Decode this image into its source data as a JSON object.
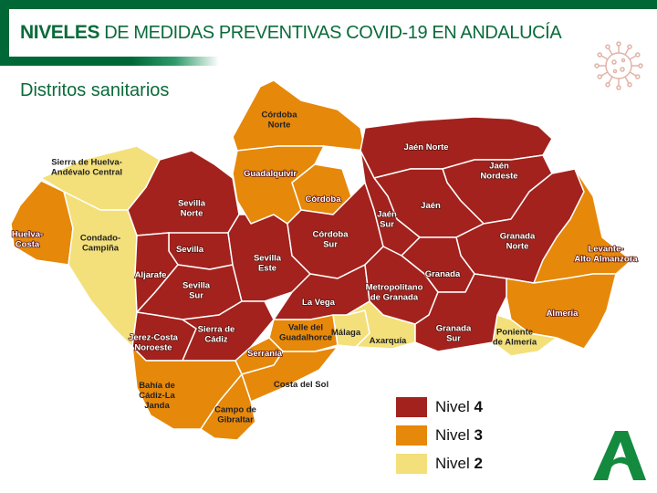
{
  "header": {
    "title_bold": "NIVELES",
    "title_rest": "DE MEDIDAS PREVENTIVAS COVID-19 EN ANDALUCÍA",
    "subtitle": "Distritos sanitarios",
    "icon": "virus-icon"
  },
  "colors": {
    "nivel4": "#a3221d",
    "nivel3": "#e6880a",
    "nivel2": "#f3e07a",
    "brand": "#006837",
    "border": "#ffffff"
  },
  "legend": [
    {
      "label": "Nivel",
      "level": "4",
      "color": "#a3221d"
    },
    {
      "label": "Nivel",
      "level": "3",
      "color": "#e6880a"
    },
    {
      "label": "Nivel",
      "level": "2",
      "color": "#f3e07a"
    }
  ],
  "districts": [
    {
      "id": "sierra-huelva",
      "lines": [
        "Sierra de Huelva-",
        "Andévalo Central"
      ],
      "level": 2
    },
    {
      "id": "huelva-costa",
      "lines": [
        "Huelva-",
        "Costa"
      ],
      "level": 3
    },
    {
      "id": "condado",
      "lines": [
        "Condado-",
        "Campiña"
      ],
      "level": 2
    },
    {
      "id": "sevilla-norte",
      "lines": [
        "Sevilla",
        "Norte"
      ],
      "level": 4
    },
    {
      "id": "sevilla",
      "lines": [
        "Sevilla"
      ],
      "level": 4
    },
    {
      "id": "aljarafe",
      "lines": [
        "Aljarafe"
      ],
      "level": 4
    },
    {
      "id": "sevilla-sur",
      "lines": [
        "Sevilla",
        "Sur"
      ],
      "level": 4
    },
    {
      "id": "sevilla-este",
      "lines": [
        "Sevilla",
        "Este"
      ],
      "level": 4
    },
    {
      "id": "cordoba-norte",
      "lines": [
        "Córdoba",
        "Norte"
      ],
      "level": 3
    },
    {
      "id": "guadalquivir",
      "lines": [
        "Guadalquivir"
      ],
      "level": 3
    },
    {
      "id": "cordoba",
      "lines": [
        "Córdoba"
      ],
      "level": 3
    },
    {
      "id": "cordoba-sur",
      "lines": [
        "Córdoba",
        "Sur"
      ],
      "level": 4
    },
    {
      "id": "la-vega",
      "lines": [
        "La Vega"
      ],
      "level": 4
    },
    {
      "id": "jerez",
      "lines": [
        "Jerez-Costa",
        "Noroeste"
      ],
      "level": 4
    },
    {
      "id": "sierra-cadiz",
      "lines": [
        "Sierra de",
        "Cádiz"
      ],
      "level": 4
    },
    {
      "id": "guadalhorce",
      "lines": [
        "Valle del",
        "Guadalhorce"
      ],
      "level": 3
    },
    {
      "id": "serrania",
      "lines": [
        "Serranía"
      ],
      "level": 3
    },
    {
      "id": "costa-sol",
      "lines": [
        "Costa del Sol"
      ],
      "level": 3
    },
    {
      "id": "malaga",
      "lines": [
        "Málaga"
      ],
      "level": 2
    },
    {
      "id": "axarquia",
      "lines": [
        "Axarquía"
      ],
      "level": 2
    },
    {
      "id": "bahia-cadiz",
      "lines": [
        "Bahía de",
        "Cádiz-La",
        "Janda"
      ],
      "level": 3
    },
    {
      "id": "campo-gibraltar",
      "lines": [
        "Campo de",
        "Gibraltar"
      ],
      "level": 3
    },
    {
      "id": "jaen-norte",
      "lines": [
        "Jaén Norte"
      ],
      "level": 4
    },
    {
      "id": "jaen-nordeste",
      "lines": [
        "Jaén",
        "Nordeste"
      ],
      "level": 4
    },
    {
      "id": "jaen",
      "lines": [
        "Jaén"
      ],
      "level": 4
    },
    {
      "id": "jaen-sur",
      "lines": [
        "Jaén",
        "Sur"
      ],
      "level": 4
    },
    {
      "id": "granada-norte",
      "lines": [
        "Granada",
        "Norte"
      ],
      "level": 4
    },
    {
      "id": "levante",
      "lines": [
        "Levante-",
        "Alto Almanzora"
      ],
      "level": 3
    },
    {
      "id": "almeria",
      "lines": [
        "Almería"
      ],
      "level": 3
    },
    {
      "id": "poniente",
      "lines": [
        "Poniente",
        "de Almería"
      ],
      "level": 2
    },
    {
      "id": "granada",
      "lines": [
        "Granada"
      ],
      "level": 4
    },
    {
      "id": "metropolitano",
      "lines": [
        "Metropolitano",
        "de Granada"
      ],
      "level": 4
    },
    {
      "id": "granada-sur",
      "lines": [
        "Granada",
        "Sur"
      ],
      "level": 4
    }
  ]
}
